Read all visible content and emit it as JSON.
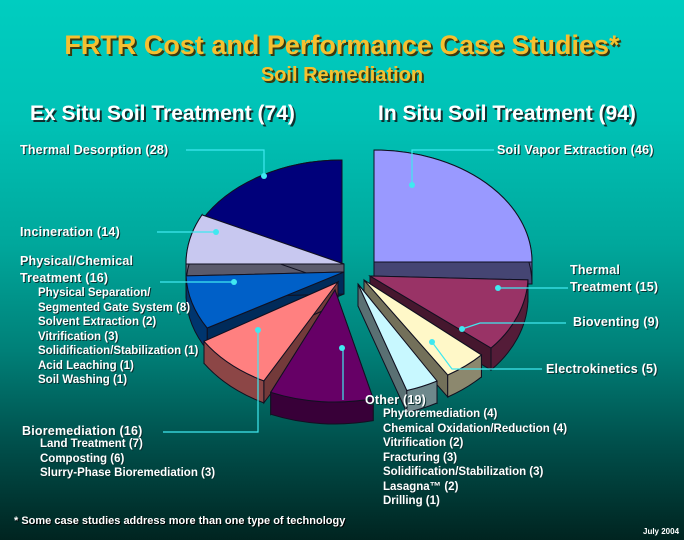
{
  "header": {
    "title": "FRTR Cost and Performance Case Studies*",
    "subtitle": "Soil Remediation",
    "ex_situ_heading": "Ex Situ Soil Treatment (74)",
    "in_situ_heading": "In Situ Soil Treatment (94)"
  },
  "labels": {
    "thermal_desorption": "Thermal Desorption (28)",
    "incineration": "Incineration (14)",
    "physchem_line1": "Physical/Chemical",
    "physchem_line2": "Treatment (16)",
    "physchem_items": [
      "Physical Separation/",
      "Segmented Gate System (8)",
      "Solvent  Extraction (2)",
      "Vitrification (3)",
      "Solidification/Stabilization (1)",
      "Acid Leaching (1)",
      "Soil Washing (1)"
    ],
    "bioremediation": "Bioremediation (16)",
    "bioremediation_items": [
      "Land Treatment (7)",
      "Composting (6)",
      "Slurry-Phase Bioremediation (3)"
    ],
    "sve": "Soil Vapor Extraction (46)",
    "thermal_treatment_line1": "Thermal",
    "thermal_treatment_line2": "Treatment (15)",
    "bioventing": "Bioventing (9)",
    "electrokinetics": "Electrokinetics (5)",
    "other": "Other (19)",
    "other_items": [
      "Phytoremediation (4)",
      "Chemical Oxidation/Reduction (4)",
      "Vitrification (2)",
      "Fracturing (3)",
      "Solidification/Stabilization (3)",
      "Lasagna™ (2)",
      "Drilling (1)"
    ]
  },
  "footer": {
    "note": "*  Some case studies address more than one type of technology",
    "date": "July 2004"
  },
  "colors": {
    "title": "#f5c030",
    "leader_line": "#40e8f0",
    "thermal_desorption": "#00007a",
    "incineration": "#c8c8f0",
    "physchem": "#0060c8",
    "bioremediation": "#ff8080",
    "other": "#660066",
    "electrokinetics": "#c8f8ff",
    "bioventing": "#fff8c8",
    "thermal_treatment": "#993366",
    "sve": "#9999ff"
  },
  "chart_data": {
    "type": "pie",
    "title": "FRTR Cost and Performance Case Studies*",
    "subtitle": "Soil Remediation",
    "style": "3D exploded pie, two halves (Ex Situ left, In Situ right)",
    "groups": [
      {
        "name": "Ex Situ Soil Treatment",
        "total": 74,
        "slices": [
          {
            "label": "Thermal Desorption",
            "value": 28
          },
          {
            "label": "Incineration",
            "value": 14
          },
          {
            "label": "Physical/Chemical Treatment",
            "value": 16,
            "breakdown": [
              {
                "label": "Physical Separation/Segmented Gate System",
                "value": 8
              },
              {
                "label": "Solvent Extraction",
                "value": 2
              },
              {
                "label": "Vitrification",
                "value": 3
              },
              {
                "label": "Solidification/Stabilization",
                "value": 1
              },
              {
                "label": "Acid Leaching",
                "value": 1
              },
              {
                "label": "Soil Washing",
                "value": 1
              }
            ]
          },
          {
            "label": "Bioremediation",
            "value": 16,
            "breakdown": [
              {
                "label": "Land Treatment",
                "value": 7
              },
              {
                "label": "Composting",
                "value": 6
              },
              {
                "label": "Slurry-Phase Bioremediation",
                "value": 3
              }
            ]
          }
        ]
      },
      {
        "name": "In Situ Soil Treatment",
        "total": 94,
        "slices": [
          {
            "label": "Soil Vapor Extraction",
            "value": 46
          },
          {
            "label": "Thermal Treatment",
            "value": 15
          },
          {
            "label": "Bioventing",
            "value": 9
          },
          {
            "label": "Electrokinetics",
            "value": 5
          },
          {
            "label": "Other",
            "value": 19,
            "breakdown": [
              {
                "label": "Phytoremediation",
                "value": 4
              },
              {
                "label": "Chemical Oxidation/Reduction",
                "value": 4
              },
              {
                "label": "Vitrification",
                "value": 2
              },
              {
                "label": "Fracturing",
                "value": 3
              },
              {
                "label": "Solidification/Stabilization",
                "value": 3
              },
              {
                "label": "Lasagna™",
                "value": 2
              },
              {
                "label": "Drilling",
                "value": 1
              }
            ]
          }
        ]
      }
    ],
    "footnote": "*  Some case studies address more than one type of technology"
  }
}
